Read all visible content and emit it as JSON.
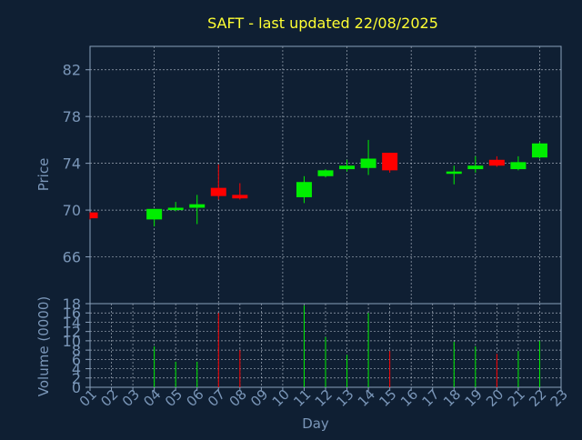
{
  "title": "SAFT - last updated 22/08/2025",
  "colors": {
    "background": "#0f1f33",
    "axis_text": "#7a96b8",
    "title": "#ffff33",
    "grid": "#cfd8e3",
    "up": "#00ee00",
    "down": "#ff0000",
    "axis_line": "#8aa0bb"
  },
  "chart_data": [
    {
      "type": "candlestick",
      "ylabel": "Price",
      "ylim": [
        62,
        84
      ],
      "yticks": [
        66,
        70,
        74,
        78,
        82
      ],
      "xlim": [
        1,
        23
      ],
      "candles": [
        {
          "day": 1,
          "open": 69.8,
          "close": 69.3,
          "high": 69.8,
          "low": 69.2
        },
        {
          "day": 4,
          "open": 69.2,
          "close": 70.1,
          "high": 70.1,
          "low": 68.6
        },
        {
          "day": 5,
          "open": 70.0,
          "close": 70.2,
          "high": 70.7,
          "low": 69.9
        },
        {
          "day": 6,
          "open": 70.2,
          "close": 70.5,
          "high": 71.3,
          "low": 68.8
        },
        {
          "day": 7,
          "open": 71.9,
          "close": 71.2,
          "high": 73.9,
          "low": 70.9
        },
        {
          "day": 8,
          "open": 71.3,
          "close": 71.0,
          "high": 72.3,
          "low": 70.9
        },
        {
          "day": 11,
          "open": 71.1,
          "close": 72.4,
          "high": 72.9,
          "low": 70.6
        },
        {
          "day": 12,
          "open": 72.9,
          "close": 73.4,
          "high": 73.5,
          "low": 72.8
        },
        {
          "day": 13,
          "open": 73.5,
          "close": 73.8,
          "high": 74.3,
          "low": 73.3
        },
        {
          "day": 14,
          "open": 73.6,
          "close": 74.4,
          "high": 76.0,
          "low": 73.0
        },
        {
          "day": 15,
          "open": 74.9,
          "close": 73.4,
          "high": 74.9,
          "low": 73.2
        },
        {
          "day": 18,
          "open": 73.1,
          "close": 73.3,
          "high": 73.8,
          "low": 72.2
        },
        {
          "day": 19,
          "open": 73.5,
          "close": 73.8,
          "high": 74.6,
          "low": 73.2
        },
        {
          "day": 20,
          "open": 74.3,
          "close": 73.8,
          "high": 74.6,
          "low": 73.7
        },
        {
          "day": 21,
          "open": 73.5,
          "close": 74.1,
          "high": 74.6,
          "low": 73.4
        },
        {
          "day": 22,
          "open": 74.5,
          "close": 75.7,
          "high": 75.8,
          "low": 74.4
        }
      ]
    },
    {
      "type": "bar",
      "ylabel": "Volume (0000)",
      "xlabel": "Day",
      "ylim": [
        0,
        18
      ],
      "yticks": [
        0,
        2,
        4,
        6,
        8,
        10,
        12,
        14,
        16,
        18
      ],
      "x_ticks": [
        "01",
        "02",
        "03",
        "04",
        "05",
        "06",
        "07",
        "08",
        "09",
        "10",
        "11",
        "12",
        "13",
        "14",
        "15",
        "16",
        "17",
        "18",
        "19",
        "20",
        "21",
        "22",
        "23"
      ],
      "volumes": [
        {
          "day": 4,
          "value": 8.8,
          "dir": "up"
        },
        {
          "day": 5,
          "value": 5.5,
          "dir": "up"
        },
        {
          "day": 6,
          "value": 5.5,
          "dir": "up"
        },
        {
          "day": 7,
          "value": 16.0,
          "dir": "down"
        },
        {
          "day": 8,
          "value": 8.0,
          "dir": "down"
        },
        {
          "day": 11,
          "value": 17.6,
          "dir": "up"
        },
        {
          "day": 12,
          "value": 10.8,
          "dir": "up"
        },
        {
          "day": 13,
          "value": 7.0,
          "dir": "up"
        },
        {
          "day": 14,
          "value": 16.0,
          "dir": "up"
        },
        {
          "day": 15,
          "value": 7.8,
          "dir": "down"
        },
        {
          "day": 18,
          "value": 9.8,
          "dir": "up"
        },
        {
          "day": 19,
          "value": 8.8,
          "dir": "up"
        },
        {
          "day": 20,
          "value": 7.2,
          "dir": "down"
        },
        {
          "day": 21,
          "value": 7.8,
          "dir": "up"
        },
        {
          "day": 22,
          "value": 10.0,
          "dir": "up"
        }
      ]
    }
  ]
}
